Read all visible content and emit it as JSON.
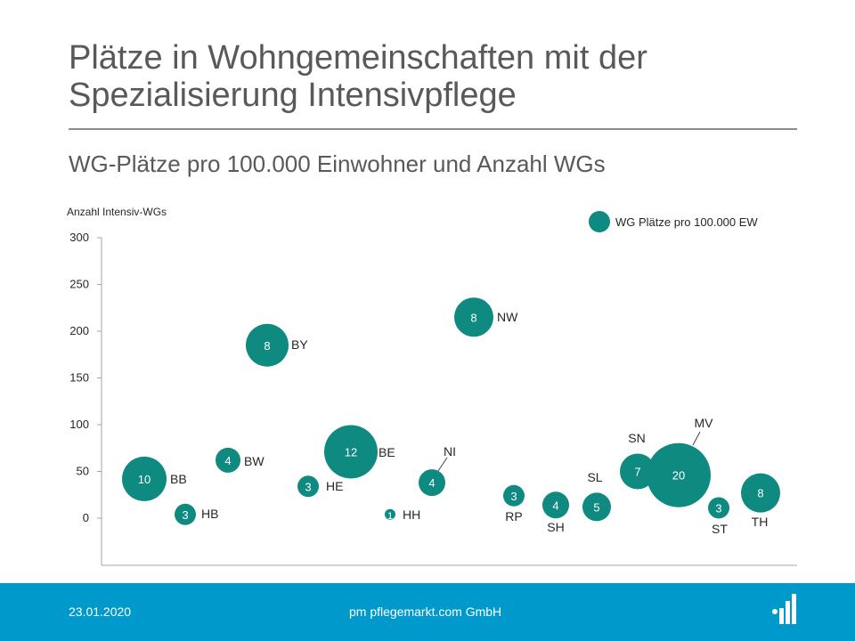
{
  "header": {
    "title_line1": "Plätze in Wohngemeinschaften mit der",
    "title_line2": "Spezialisierung Intensivpflege",
    "subtitle": "WG-Plätze pro 100.000 Einwohner und Anzahl WGs"
  },
  "footer": {
    "date": "23.01.2020",
    "company": "pm pflegemarkt.com GmbH"
  },
  "colors": {
    "bubble": "#0e8a80",
    "footer_bg": "#0099cc",
    "text": "#595959"
  },
  "logo": {
    "icon": "bar-chart-logo-icon"
  },
  "chart_data": {
    "type": "scatter",
    "subtype": "bubble",
    "ylabel": "Anzahl Intensiv-WGs",
    "ylim": [
      0,
      300
    ],
    "yticks": [
      "300",
      "250",
      "200",
      "150",
      "100",
      "50",
      "0"
    ],
    "legend": {
      "label": "WG Plätze pro 100.000 EW",
      "position": "top-right"
    },
    "grid": false,
    "points": [
      {
        "state": "BB",
        "y": 42,
        "size": "10"
      },
      {
        "state": "HB",
        "y": 4,
        "size": "3"
      },
      {
        "state": "BW",
        "y": 62,
        "size": "4"
      },
      {
        "state": "BY",
        "y": 185,
        "size": "8"
      },
      {
        "state": "HE",
        "y": 34,
        "size": "3"
      },
      {
        "state": "BE",
        "y": 71,
        "size": "12"
      },
      {
        "state": "HH",
        "y": 4,
        "size": "1"
      },
      {
        "state": "NI",
        "y": 38,
        "size": "4"
      },
      {
        "state": "NW",
        "y": 215,
        "size": "8"
      },
      {
        "state": "RP",
        "y": 24,
        "size": "3"
      },
      {
        "state": "SH",
        "y": 14,
        "size": "4"
      },
      {
        "state": "SL",
        "y": 12,
        "size": "5"
      },
      {
        "state": "SN",
        "y": 50,
        "size": "7"
      },
      {
        "state": "MV",
        "y": 46,
        "size": "20"
      },
      {
        "state": "ST",
        "y": 11,
        "size": "3"
      },
      {
        "state": "TH",
        "y": 27,
        "size": "8"
      }
    ]
  }
}
